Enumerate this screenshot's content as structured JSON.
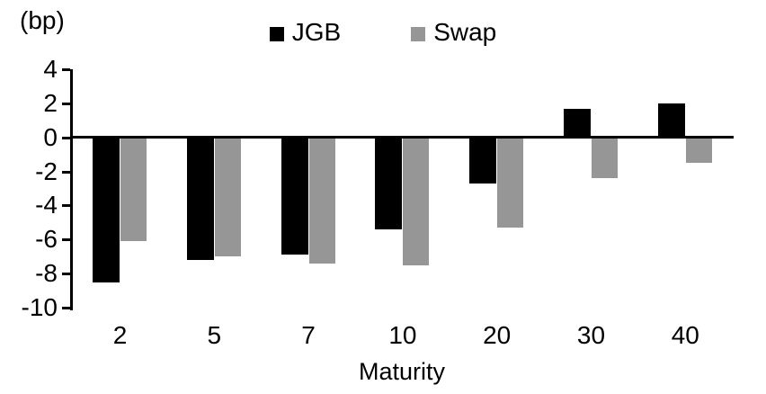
{
  "chart_data": {
    "type": "bar",
    "title": "",
    "unit_label": "(bp)",
    "xlabel": "Maturity",
    "categories": [
      "2",
      "5",
      "7",
      "10",
      "20",
      "30",
      "40"
    ],
    "series": [
      {
        "name": "JGB",
        "color": "#000000",
        "values": [
          -8.5,
          -7.2,
          -6.9,
          -5.4,
          -2.7,
          1.7,
          2.0
        ]
      },
      {
        "name": "Swap",
        "color": "#969696",
        "values": [
          -6.1,
          -7.0,
          -7.4,
          -7.5,
          -5.3,
          -2.4,
          -1.5
        ]
      }
    ],
    "y_ticks": [
      4,
      2,
      0,
      -2,
      -4,
      -6,
      -8,
      -10
    ],
    "ylim": [
      -10,
      4
    ],
    "grid": false,
    "legend_position": "top-center",
    "axis_color": "#000000"
  }
}
